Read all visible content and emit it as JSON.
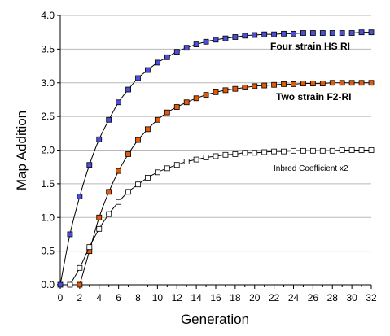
{
  "chart_data": {
    "type": "line",
    "xlabel": "Generation",
    "ylabel": "Map Addition",
    "xlim": [
      0,
      32
    ],
    "ylim": [
      0,
      4
    ],
    "xticks": [
      "0",
      "2",
      "4",
      "6",
      "8",
      "10",
      "12",
      "14",
      "16",
      "18",
      "20",
      "22",
      "24",
      "26",
      "28",
      "30",
      "32"
    ],
    "yticks": [
      "0.0",
      "0.5",
      "1.0",
      "1.5",
      "2.0",
      "2.5",
      "3.0",
      "3.5",
      "4.0"
    ],
    "grid": "horizontal",
    "series": [
      {
        "name": "Four strain HS RI",
        "color": "#4a4fd6",
        "marker": "filled-square",
        "x": [
          0,
          1,
          2,
          3,
          4,
          5,
          6,
          7,
          8,
          9,
          10,
          11,
          12,
          13,
          14,
          15,
          16,
          17,
          18,
          19,
          20,
          21,
          22,
          23,
          24,
          25,
          26,
          27,
          28,
          29,
          30,
          31,
          32
        ],
        "y": [
          0,
          0.75,
          1.31,
          1.78,
          2.16,
          2.45,
          2.71,
          2.9,
          3.07,
          3.19,
          3.3,
          3.38,
          3.46,
          3.52,
          3.57,
          3.61,
          3.64,
          3.66,
          3.68,
          3.7,
          3.71,
          3.72,
          3.72,
          3.73,
          3.73,
          3.74,
          3.74,
          3.74,
          3.74,
          3.74,
          3.74,
          3.75,
          3.75
        ]
      },
      {
        "name": "Two strain F2-RI",
        "color": "#e25a0b",
        "marker": "filled-square",
        "x": [
          2,
          3,
          4,
          5,
          6,
          7,
          8,
          9,
          10,
          11,
          12,
          13,
          14,
          15,
          16,
          17,
          18,
          19,
          20,
          21,
          22,
          23,
          24,
          25,
          26,
          27,
          28,
          29,
          30,
          31,
          32
        ],
        "y": [
          0,
          0.5,
          1.0,
          1.38,
          1.69,
          1.94,
          2.15,
          2.31,
          2.45,
          2.56,
          2.64,
          2.71,
          2.77,
          2.82,
          2.86,
          2.89,
          2.91,
          2.93,
          2.95,
          2.96,
          2.97,
          2.98,
          2.98,
          2.99,
          2.99,
          2.99,
          3.0,
          3.0,
          3.0,
          3.0,
          3.0
        ]
      },
      {
        "name": "Inbred Coefficient x2",
        "color": "#000000",
        "marker": "open-square",
        "x": [
          1,
          2,
          3,
          4,
          5,
          6,
          7,
          8,
          9,
          10,
          11,
          12,
          13,
          14,
          15,
          16,
          17,
          18,
          19,
          20,
          21,
          22,
          23,
          24,
          25,
          26,
          27,
          28,
          29,
          30,
          31,
          32
        ],
        "y": [
          0,
          0.25,
          0.56,
          0.83,
          1.05,
          1.23,
          1.38,
          1.49,
          1.59,
          1.67,
          1.73,
          1.78,
          1.83,
          1.86,
          1.89,
          1.91,
          1.93,
          1.94,
          1.96,
          1.96,
          1.97,
          1.98,
          1.98,
          1.99,
          1.99,
          1.99,
          1.99,
          1.99,
          2.0,
          2.0,
          2.0,
          2.0
        ]
      }
    ]
  }
}
